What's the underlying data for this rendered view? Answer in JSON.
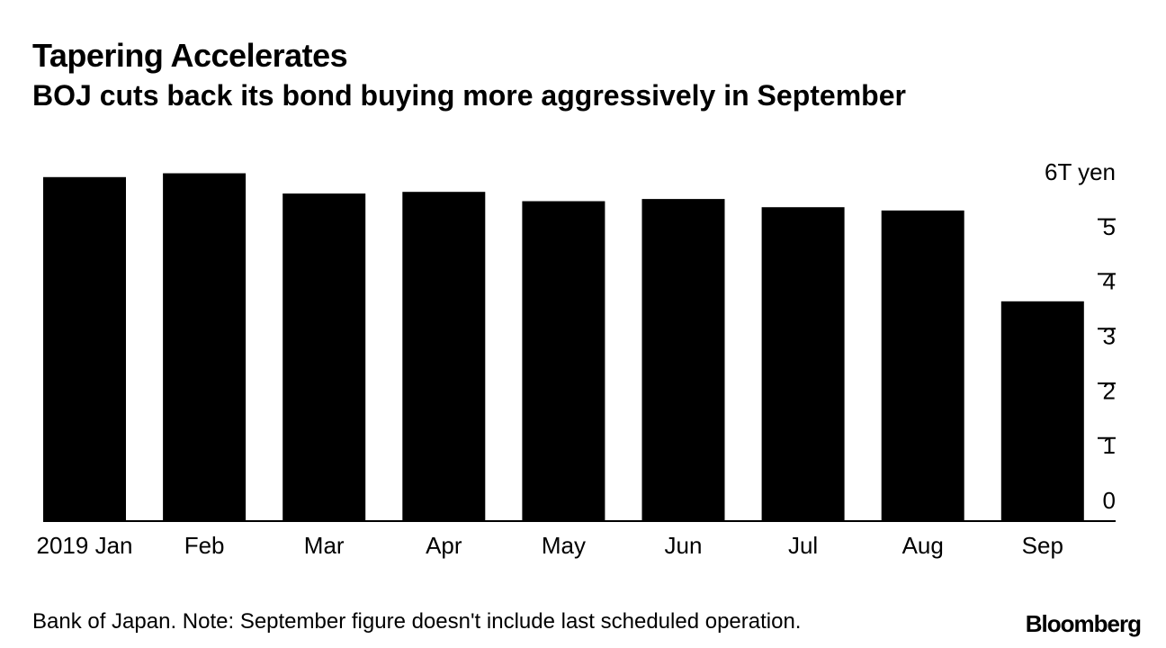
{
  "header": {
    "title": "Tapering Accelerates",
    "subtitle": "BOJ cuts back its bond buying more aggressively in September"
  },
  "footer": {
    "source_note": "Bank of Japan. Note: September figure doesn't include last scheduled operation.",
    "brand": "Bloomberg"
  },
  "colors": {
    "bar": "#000000",
    "axis": "#000000",
    "text": "#000000",
    "background": "#ffffff"
  },
  "chart_data": {
    "type": "bar",
    "title": "Tapering Accelerates",
    "subtitle": "BOJ cuts back its bond buying more aggressively in September",
    "xlabel": "",
    "ylabel": "",
    "unit_label": "6T yen",
    "categories": [
      "2019 Jan",
      "Feb",
      "Mar",
      "Apr",
      "May",
      "Jun",
      "Jul",
      "Aug",
      "Sep"
    ],
    "values": [
      6.27,
      6.34,
      5.97,
      6.0,
      5.83,
      5.87,
      5.72,
      5.66,
      4.0
    ],
    "y_ticks": [
      0,
      1,
      2,
      3,
      4,
      5
    ],
    "ylim": [
      0,
      6.4
    ],
    "axis_position": "right",
    "grid": false,
    "legend": "none"
  }
}
